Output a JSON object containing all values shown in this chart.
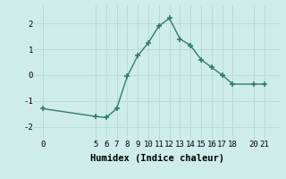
{
  "x": [
    0,
    5,
    6,
    7,
    8,
    9,
    10,
    11,
    12,
    13,
    14,
    15,
    16,
    17,
    18,
    20,
    21
  ],
  "y": [
    -1.3,
    -1.6,
    -1.65,
    -1.3,
    -0.05,
    0.75,
    1.25,
    1.9,
    2.2,
    1.4,
    1.15,
    0.6,
    0.3,
    0.0,
    -0.35,
    -0.35,
    -0.35
  ],
  "line_color": "#2e7d6e",
  "marker": "+",
  "marker_size": 4,
  "marker_lw": 1.2,
  "line_width": 1.0,
  "bg_color": "#ceecea",
  "grid_color": "#b8dbd8",
  "xlabel": "Humidex (Indice chaleur)",
  "xlim": [
    -0.8,
    22.5
  ],
  "ylim": [
    -2.5,
    2.7
  ],
  "xticks": [
    0,
    5,
    6,
    7,
    8,
    9,
    10,
    11,
    12,
    13,
    14,
    15,
    16,
    17,
    18,
    20,
    21
  ],
  "yticks": [
    -2,
    -1,
    0,
    1,
    2
  ],
  "tick_fontsize": 6.5,
  "label_fontsize": 7.5
}
